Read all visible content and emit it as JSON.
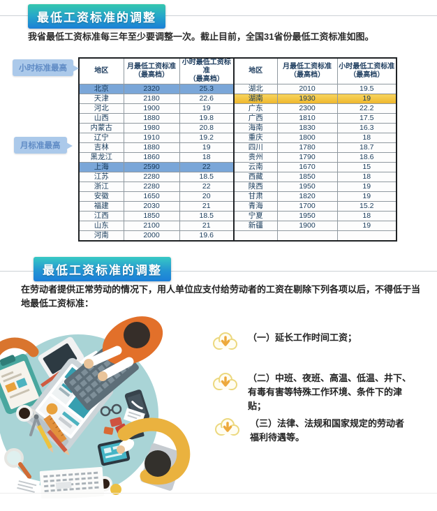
{
  "section1": {
    "badge_title": "最低工资标准的调整",
    "intro": "我省最低工资标准每三年至少要调整一次。截止目前，全国31省份最低工资标准如图。",
    "callout_hourly": "小时标准最高",
    "callout_monthly": "月标准最高",
    "table": {
      "headers": [
        "地区",
        "月最低工资标准\n（最高档）",
        "小时最低工资标准\n（最高档）",
        "地区",
        "月最低工资标准\n（最高档）",
        "小时最低工资标准\n（最高档）"
      ],
      "rows": [
        {
          "c": [
            "北京",
            "2320",
            "25.3",
            "湖北",
            "2010",
            "19.5"
          ],
          "hlL": "blue"
        },
        {
          "c": [
            "天津",
            "2180",
            "22.6",
            "湖南",
            "1930",
            "19"
          ],
          "hlR": "yellow"
        },
        {
          "c": [
            "河北",
            "1900",
            "19",
            "广东",
            "2300",
            "22.2"
          ]
        },
        {
          "c": [
            "山西",
            "1880",
            "19.8",
            "广西",
            "1810",
            "17.5"
          ]
        },
        {
          "c": [
            "内蒙古",
            "1980",
            "20.8",
            "海南",
            "1830",
            "16.3"
          ]
        },
        {
          "c": [
            "辽宁",
            "1910",
            "19.2",
            "重庆",
            "1800",
            "18"
          ]
        },
        {
          "c": [
            "吉林",
            "1880",
            "19",
            "四川",
            "1780",
            "18.7"
          ]
        },
        {
          "c": [
            "黑龙江",
            "1860",
            "18",
            "贵州",
            "1790",
            "18.6"
          ]
        },
        {
          "c": [
            "上海",
            "2590",
            "22",
            "云南",
            "1670",
            "15"
          ],
          "hlL": "blue"
        },
        {
          "c": [
            "江苏",
            "2280",
            "18.5",
            "西藏",
            "1850",
            "18"
          ]
        },
        {
          "c": [
            "浙江",
            "2280",
            "22",
            "陕西",
            "1950",
            "19"
          ]
        },
        {
          "c": [
            "安徽",
            "1650",
            "20",
            "甘肃",
            "1820",
            "19"
          ]
        },
        {
          "c": [
            "福建",
            "2030",
            "21",
            "青海",
            "1700",
            "15.2"
          ]
        },
        {
          "c": [
            "江西",
            "1850",
            "18.5",
            "宁夏",
            "1950",
            "18"
          ]
        },
        {
          "c": [
            "山东",
            "2100",
            "21",
            "新疆",
            "1900",
            "19"
          ]
        },
        {
          "c": [
            "河南",
            "2000",
            "19.6",
            "",
            "",
            ""
          ]
        }
      ]
    }
  },
  "section2": {
    "badge_title": "最低工资标准的调整",
    "paragraph": "在劳动者提供正常劳动的情况下，用人单位应支付给劳动者的工资在剔除下列各项以后，不得低于当地最低工资标准：",
    "items": [
      {
        "icon": "cloud-download-icon",
        "text": "（一）延长工作时间工资；"
      },
      {
        "icon": "cloud-download-icon",
        "text": "（二）中班、夜班、高温、低温、井下、有毒有害等特殊工作环境、条件下的津贴；"
      },
      {
        "icon": "cloud-download-icon",
        "text": "（三）法律、法规和国家规定的劳动者福利待遇等。"
      }
    ]
  },
  "colors": {
    "badge_gradient_top": "#35c7ae",
    "badge_gradient_bottom": "#1b7fd6",
    "highlight_blue": "#7aa6d8",
    "highlight_yellow": "#f0c13a",
    "callout_bg": "#abc9ea",
    "callout_text": "#5f8bc5",
    "table_text": "#173a5a",
    "illustration_table_teal": "#a9d4d6"
  }
}
